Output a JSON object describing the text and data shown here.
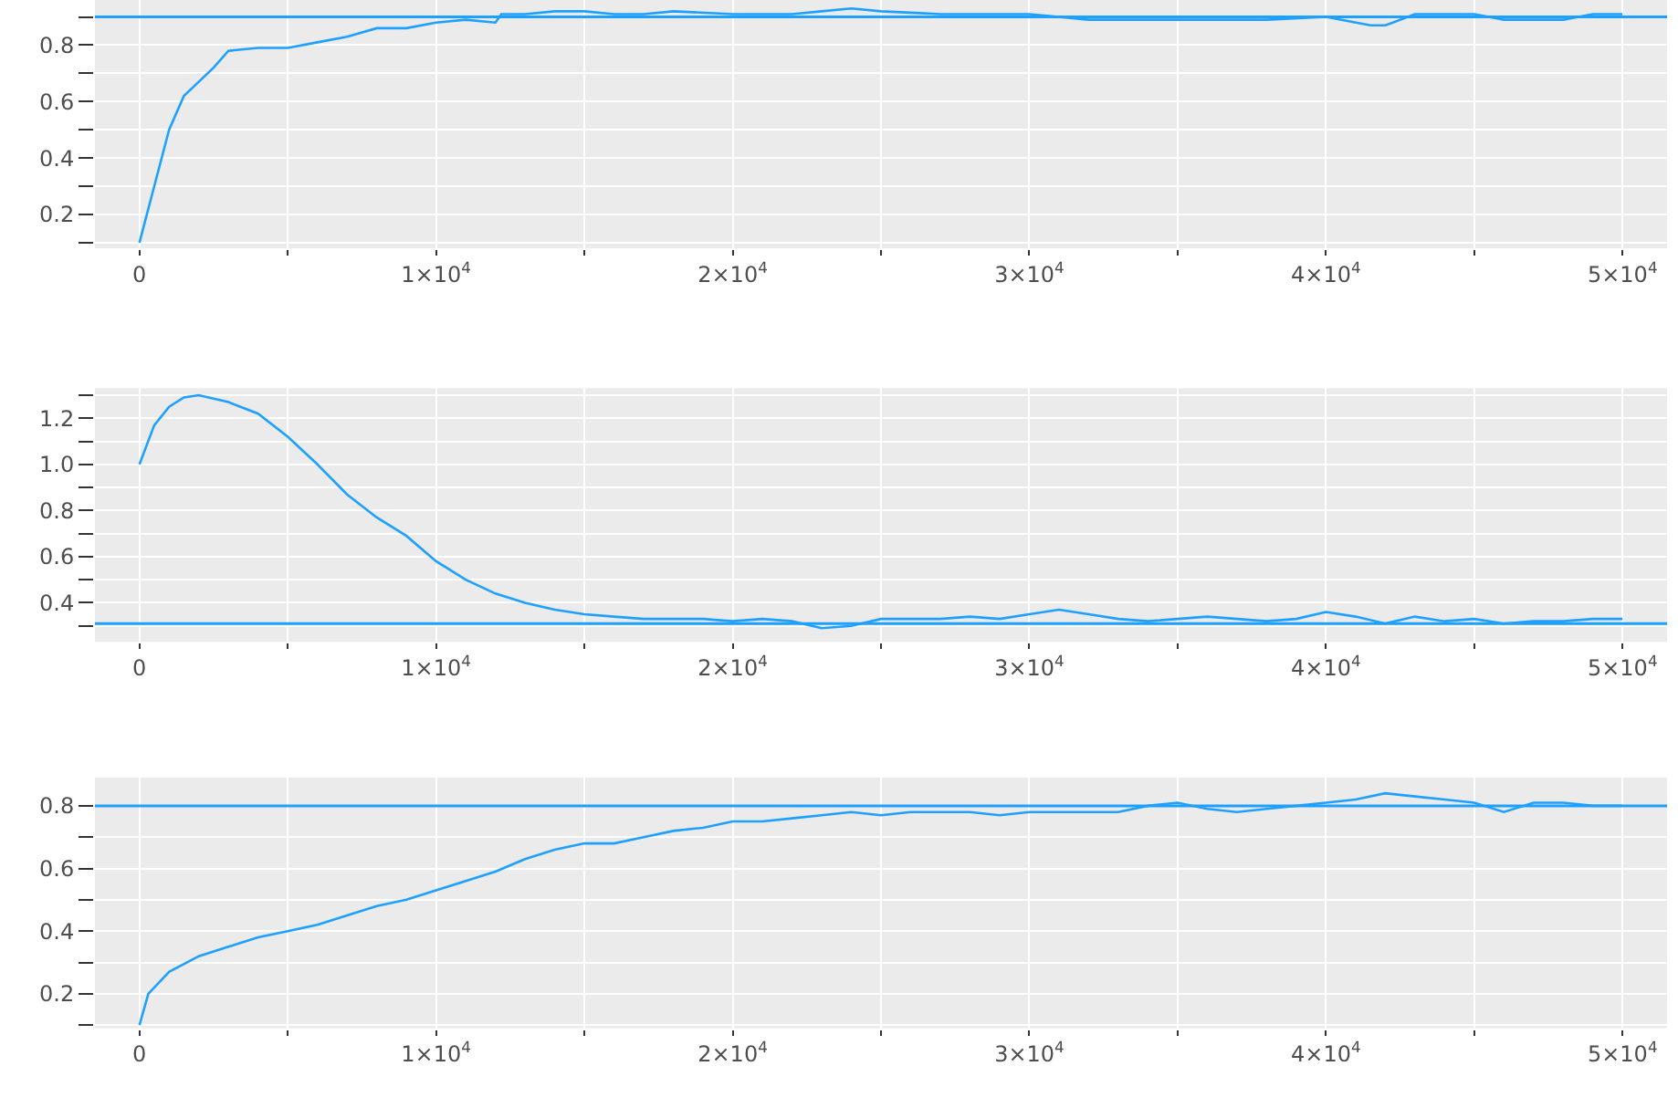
{
  "chart_data": [
    {
      "type": "line",
      "x": [
        0,
        500,
        1000,
        1500,
        2000,
        2500,
        3000,
        4000,
        5000,
        6000,
        7000,
        8000,
        9000,
        10000,
        11000,
        12000,
        12200,
        13000,
        14000,
        15000,
        16000,
        17000,
        18000,
        20000,
        22000,
        23000,
        24000,
        25000,
        27000,
        29000,
        30000,
        32000,
        34000,
        36000,
        38000,
        40000,
        41500,
        42000,
        43000,
        45000,
        46000,
        48000,
        49000,
        50000
      ],
      "series": [
        {
          "color": "#1ea0ff",
          "values": [
            0.1,
            0.3,
            0.5,
            0.62,
            0.67,
            0.72,
            0.78,
            0.79,
            0.79,
            0.81,
            0.83,
            0.86,
            0.86,
            0.88,
            0.89,
            0.88,
            0.91,
            0.91,
            0.92,
            0.92,
            0.91,
            0.91,
            0.92,
            0.91,
            0.91,
            0.92,
            0.93,
            0.92,
            0.91,
            0.91,
            0.91,
            0.89,
            0.89,
            0.89,
            0.89,
            0.9,
            0.87,
            0.87,
            0.91,
            0.91,
            0.89,
            0.89,
            0.91,
            0.91
          ]
        }
      ],
      "xlim": [
        -1500,
        51500
      ],
      "xticks": [
        0,
        {
          "value": 5000,
          "label": null
        },
        {
          "value": 10000,
          "label": "1×10$^{4}$"
        },
        {
          "value": 15000,
          "label": null
        },
        {
          "value": 20000,
          "label": "2×10$^{4}$"
        },
        {
          "value": 25000,
          "label": null
        },
        {
          "value": 30000,
          "label": "3×10$^{4}$"
        },
        {
          "value": 35000,
          "label": null
        },
        {
          "value": 40000,
          "label": "4×10$^{4}$"
        },
        {
          "value": 45000,
          "label": null
        },
        {
          "value": 50000,
          "label": "5×10$^{4}$"
        }
      ],
      "ylim": [
        0.08,
        0.96
      ],
      "yticks": [
        {
          "value": 0.1,
          "label": null
        },
        0.2,
        {
          "value": 0.3,
          "label": null
        },
        0.4,
        {
          "value": 0.5,
          "label": null
        },
        0.6,
        {
          "value": 0.7,
          "label": null
        },
        0.8,
        {
          "value": 0.9,
          "label": null
        }
      ],
      "ref_lines": [
        {
          "axis": "y",
          "value": 0.9,
          "color": "#1ea0ff"
        }
      ],
      "grid": true
    },
    {
      "type": "line",
      "x": [
        0,
        500,
        1000,
        1500,
        2000,
        3000,
        4000,
        5000,
        6000,
        7000,
        8000,
        9000,
        10000,
        11000,
        12000,
        13000,
        14000,
        15000,
        16000,
        17000,
        18000,
        19000,
        20000,
        21000,
        22000,
        23000,
        24000,
        25000,
        26000,
        27000,
        28000,
        29000,
        30000,
        31000,
        32000,
        33000,
        34000,
        35000,
        36000,
        37000,
        38000,
        39000,
        40000,
        41000,
        42000,
        43000,
        44000,
        45000,
        46000,
        47000,
        48000,
        49000,
        50000
      ],
      "series": [
        {
          "color": "#1ea0ff",
          "values": [
            1.0,
            1.17,
            1.25,
            1.29,
            1.3,
            1.27,
            1.22,
            1.12,
            1.0,
            0.87,
            0.77,
            0.69,
            0.58,
            0.5,
            0.44,
            0.4,
            0.37,
            0.35,
            0.34,
            0.33,
            0.33,
            0.33,
            0.32,
            0.33,
            0.32,
            0.29,
            0.3,
            0.33,
            0.33,
            0.33,
            0.34,
            0.33,
            0.35,
            0.37,
            0.35,
            0.33,
            0.32,
            0.33,
            0.34,
            0.33,
            0.32,
            0.33,
            0.36,
            0.34,
            0.31,
            0.34,
            0.32,
            0.33,
            0.31,
            0.32,
            0.32,
            0.33,
            0.33
          ]
        }
      ],
      "xlim": [
        -1500,
        51500
      ],
      "xticks": [
        0,
        {
          "value": 5000,
          "label": null
        },
        {
          "value": 10000,
          "label": "1×10$^{4}$"
        },
        {
          "value": 15000,
          "label": null
        },
        {
          "value": 20000,
          "label": "2×10$^{4}$"
        },
        {
          "value": 25000,
          "label": null
        },
        {
          "value": 30000,
          "label": "3×10$^{4}$"
        },
        {
          "value": 35000,
          "label": null
        },
        {
          "value": 40000,
          "label": "4×10$^{4}$"
        },
        {
          "value": 45000,
          "label": null
        },
        {
          "value": 50000,
          "label": "5×10$^{4}$"
        }
      ],
      "ylim": [
        0.23,
        1.33
      ],
      "yticks": [
        {
          "value": 0.3,
          "label": null
        },
        0.4,
        {
          "value": 0.5,
          "label": null
        },
        0.6,
        {
          "value": 0.7,
          "label": null
        },
        0.8,
        {
          "value": 0.9,
          "label": null
        },
        "1.0",
        {
          "value": 1.1,
          "label": null
        },
        1.2,
        {
          "value": 1.3,
          "label": null
        }
      ],
      "ref_lines": [
        {
          "axis": "y",
          "value": 0.31,
          "color": "#1ea0ff"
        }
      ],
      "grid": true
    },
    {
      "type": "line",
      "x": [
        0,
        300,
        1000,
        2000,
        3000,
        4000,
        5000,
        6000,
        7000,
        8000,
        9000,
        10000,
        11000,
        12000,
        13000,
        14000,
        15000,
        16000,
        17000,
        18000,
        19000,
        20000,
        21000,
        22000,
        23000,
        24000,
        25000,
        26000,
        27000,
        28000,
        29000,
        30000,
        31000,
        32000,
        33000,
        34000,
        35000,
        36000,
        37000,
        38000,
        39000,
        40000,
        41000,
        42000,
        43000,
        44000,
        45000,
        46000,
        47000,
        48000,
        49000,
        50000
      ],
      "series": [
        {
          "color": "#1ea0ff",
          "values": [
            0.1,
            0.2,
            0.27,
            0.32,
            0.35,
            0.38,
            0.4,
            0.42,
            0.45,
            0.48,
            0.5,
            0.53,
            0.56,
            0.59,
            0.63,
            0.66,
            0.68,
            0.68,
            0.7,
            0.72,
            0.73,
            0.75,
            0.75,
            0.76,
            0.77,
            0.78,
            0.77,
            0.78,
            0.78,
            0.78,
            0.77,
            0.78,
            0.78,
            0.78,
            0.78,
            0.8,
            0.81,
            0.79,
            0.78,
            0.79,
            0.8,
            0.81,
            0.82,
            0.84,
            0.83,
            0.82,
            0.81,
            0.78,
            0.81,
            0.81,
            0.8,
            0.8
          ]
        }
      ],
      "xlim": [
        -1500,
        51500
      ],
      "xticks": [
        0,
        {
          "value": 5000,
          "label": null
        },
        {
          "value": 10000,
          "label": "1×10$^{4}$"
        },
        {
          "value": 15000,
          "label": null
        },
        {
          "value": 20000,
          "label": "2×10$^{4}$"
        },
        {
          "value": 25000,
          "label": null
        },
        {
          "value": 30000,
          "label": "3×10$^{4}$"
        },
        {
          "value": 35000,
          "label": null
        },
        {
          "value": 40000,
          "label": "4×10$^{4}$"
        },
        {
          "value": 45000,
          "label": null
        },
        {
          "value": 50000,
          "label": "5×10$^{4}$"
        }
      ],
      "ylim": [
        0.09,
        0.89
      ],
      "yticks": [
        {
          "value": 0.1,
          "label": null
        },
        0.2,
        {
          "value": 0.3,
          "label": null
        },
        0.4,
        {
          "value": 0.5,
          "label": null
        },
        0.6,
        {
          "value": 0.7,
          "label": null
        },
        0.8
      ],
      "ref_lines": [
        {
          "axis": "y",
          "value": 0.8,
          "color": "#1ea0ff"
        }
      ],
      "grid": true
    }
  ]
}
